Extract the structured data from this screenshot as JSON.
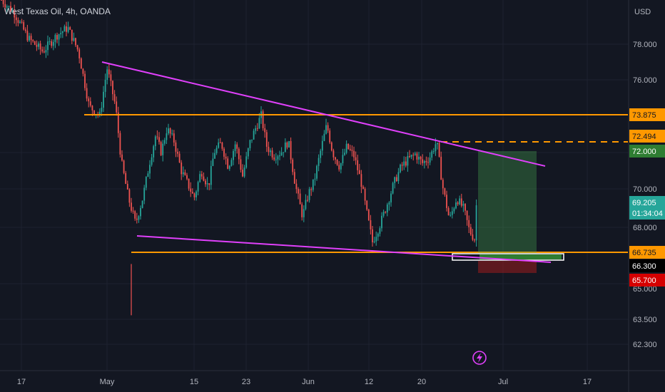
{
  "header": {
    "symbol_title": "West Texas Oil, 4h, OANDA",
    "currency": "USD"
  },
  "colors": {
    "background": "#131722",
    "up_candle": "#26a69a",
    "down_candle": "#ef5350",
    "resistance_line": "#ff9800",
    "trend_line": "#e040fb",
    "target_zone": "#4caf50",
    "stop_zone": "#7f1d1d",
    "grid": "#1e2230"
  },
  "price_axis": {
    "tick_labels": [
      "78.000",
      "76.000",
      "72.000",
      "70.000",
      "68.000",
      "65.000",
      "63.500",
      "62.300"
    ],
    "price_tags": [
      {
        "value": "73.875",
        "bg": "#ff9800",
        "fg": "#131722"
      },
      {
        "value": "72.494",
        "bg": "#ff9800",
        "fg": "#131722"
      },
      {
        "value": "72.000",
        "bg": "#2e7d32",
        "fg": "#ffffff"
      },
      {
        "value": "69.205",
        "bg": "#26a69a",
        "fg": "#ffffff"
      },
      {
        "value": "01:34:04",
        "bg": "#26a69a",
        "fg": "#ffffff"
      },
      {
        "value": "66.735",
        "bg": "#ff9800",
        "fg": "#131722"
      },
      {
        "value": "66.300",
        "bg": "#000000",
        "fg": "#ffffff"
      },
      {
        "value": "65.700",
        "bg": "#d50000",
        "fg": "#ffffff"
      }
    ]
  },
  "time_axis": {
    "labels": [
      "17",
      "May",
      "15",
      "23",
      "Jun",
      "12",
      "20",
      "Jul",
      "17"
    ]
  },
  "chart_data": {
    "type": "candlestick",
    "title": "West Texas Oil, 4h, OANDA",
    "x_ticks": [
      "17",
      "May",
      "15",
      "23",
      "Jun",
      "12",
      "20",
      "Jul",
      "17"
    ],
    "y_unit": "USD",
    "ylim": [
      61.6,
      80.2
    ],
    "horizontal_levels": [
      73.875,
      72.494,
      66.735
    ],
    "long_position": {
      "entry": 66.3,
      "target": 72.0,
      "stop": 65.7
    },
    "last_price": 69.205,
    "bar_countdown": "01:34:04",
    "close_path": [
      [
        0,
        80.5
      ],
      [
        20,
        79.7
      ],
      [
        40,
        78.3
      ],
      [
        60,
        77.6
      ],
      [
        80,
        78.5
      ],
      [
        95,
        78.9
      ],
      [
        110,
        77.6
      ],
      [
        125,
        74.6
      ],
      [
        140,
        74.1
      ],
      [
        150,
        76.7
      ],
      [
        162,
        74.6
      ],
      [
        170,
        71.6
      ],
      [
        180,
        69.6
      ],
      [
        190,
        68.2
      ],
      [
        200,
        69.6
      ],
      [
        210,
        71.6
      ],
      [
        218,
        73.0
      ],
      [
        226,
        72.1
      ],
      [
        234,
        73.4
      ],
      [
        244,
        72.7
      ],
      [
        254,
        71.1
      ],
      [
        264,
        70.3
      ],
      [
        272,
        69.6
      ],
      [
        282,
        71.1
      ],
      [
        292,
        70.2
      ],
      [
        300,
        72.1
      ],
      [
        310,
        72.6
      ],
      [
        320,
        71.3
      ],
      [
        330,
        72.6
      ],
      [
        340,
        70.8
      ],
      [
        350,
        72.6
      ],
      [
        358,
        73.4
      ],
      [
        366,
        74.1
      ],
      [
        374,
        72.4
      ],
      [
        384,
        71.9
      ],
      [
        394,
        72.1
      ],
      [
        404,
        72.7
      ],
      [
        414,
        70.3
      ],
      [
        424,
        68.6
      ],
      [
        432,
        69.8
      ],
      [
        440,
        70.5
      ],
      [
        450,
        72.3
      ],
      [
        458,
        73.6
      ],
      [
        466,
        72.1
      ],
      [
        476,
        71.3
      ],
      [
        486,
        72.4
      ],
      [
        496,
        71.9
      ],
      [
        506,
        70.5
      ],
      [
        514,
        68.8
      ],
      [
        522,
        67.2
      ],
      [
        532,
        68.1
      ],
      [
        542,
        69.2
      ],
      [
        552,
        70.4
      ],
      [
        562,
        71.3
      ],
      [
        572,
        71.7
      ],
      [
        582,
        72.0
      ],
      [
        592,
        71.5
      ],
      [
        602,
        71.8
      ],
      [
        612,
        72.7
      ],
      [
        620,
        70.3
      ],
      [
        630,
        68.4
      ],
      [
        640,
        69.6
      ],
      [
        650,
        69.0
      ],
      [
        658,
        67.8
      ],
      [
        666,
        67.3
      ],
      [
        670,
        69.2
      ]
    ]
  }
}
